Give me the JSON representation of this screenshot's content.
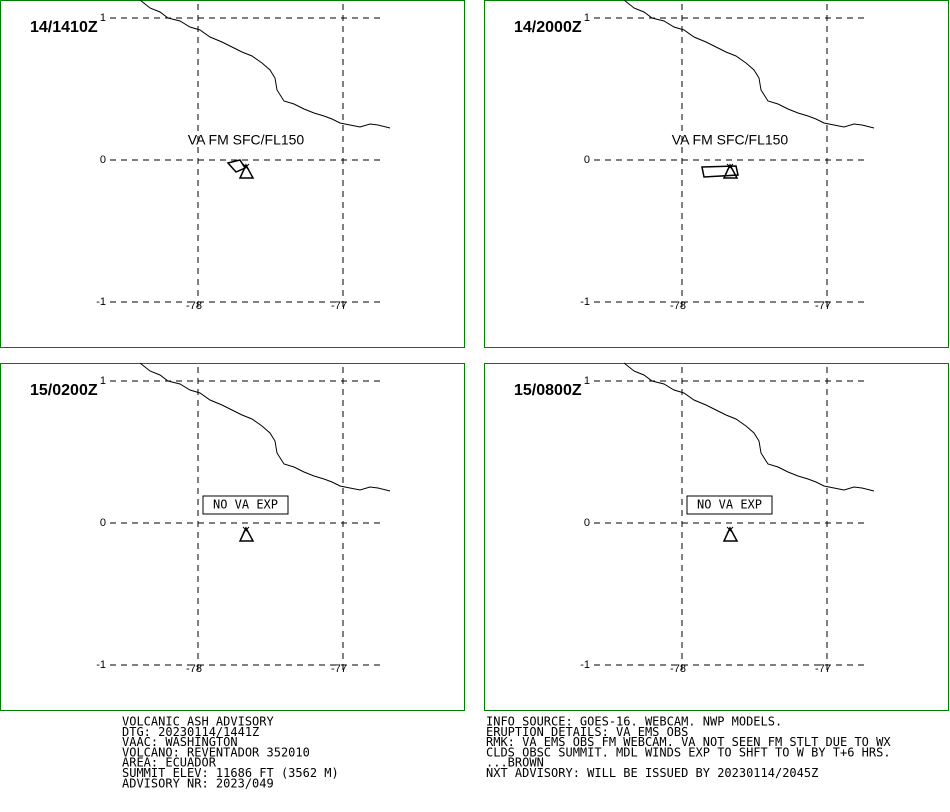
{
  "panels": [
    {
      "time": "14/1410Z",
      "annotation": "VA FM SFC/FL150"
    },
    {
      "time": "14/2000Z",
      "annotation": "VA FM SFC/FL150"
    },
    {
      "time": "15/0200Z",
      "annotation": "NO VA EXP"
    },
    {
      "time": "15/0800Z",
      "annotation": "NO VA EXP"
    }
  ],
  "lat_labels": [
    "1",
    "0",
    "-1"
  ],
  "lon_labels": [
    "-78",
    "-77"
  ],
  "advisory_left": [
    "VOLCANIC ASH ADVISORY",
    "DTG: 20230114/1441Z",
    "VAAC: WASHINGTON",
    "VOLCANO: REVENTADOR 352010",
    "AREA: ECUADOR",
    "SUMMIT ELEV: 11686 FT (3562 M)",
    "ADVISORY NR: 2023/049"
  ],
  "advisory_right": [
    "INFO SOURCE: GOES-16. WEBCAM. NWP MODELS.",
    "ERUPTION DETAILS: VA EMS OBS",
    "RMK: VA EMS OBS FM WEBCAM. VA NOT SEEN FM STLT DUE TO WX",
    "CLDS OBSC SUMMIT. MDL WINDS EXP TO SHFT TO W BY T+6 HRS.",
    "...BROWN",
    "NXT ADVISORY: WILL BE ISSUED BY 20230114/2045Z"
  ]
}
